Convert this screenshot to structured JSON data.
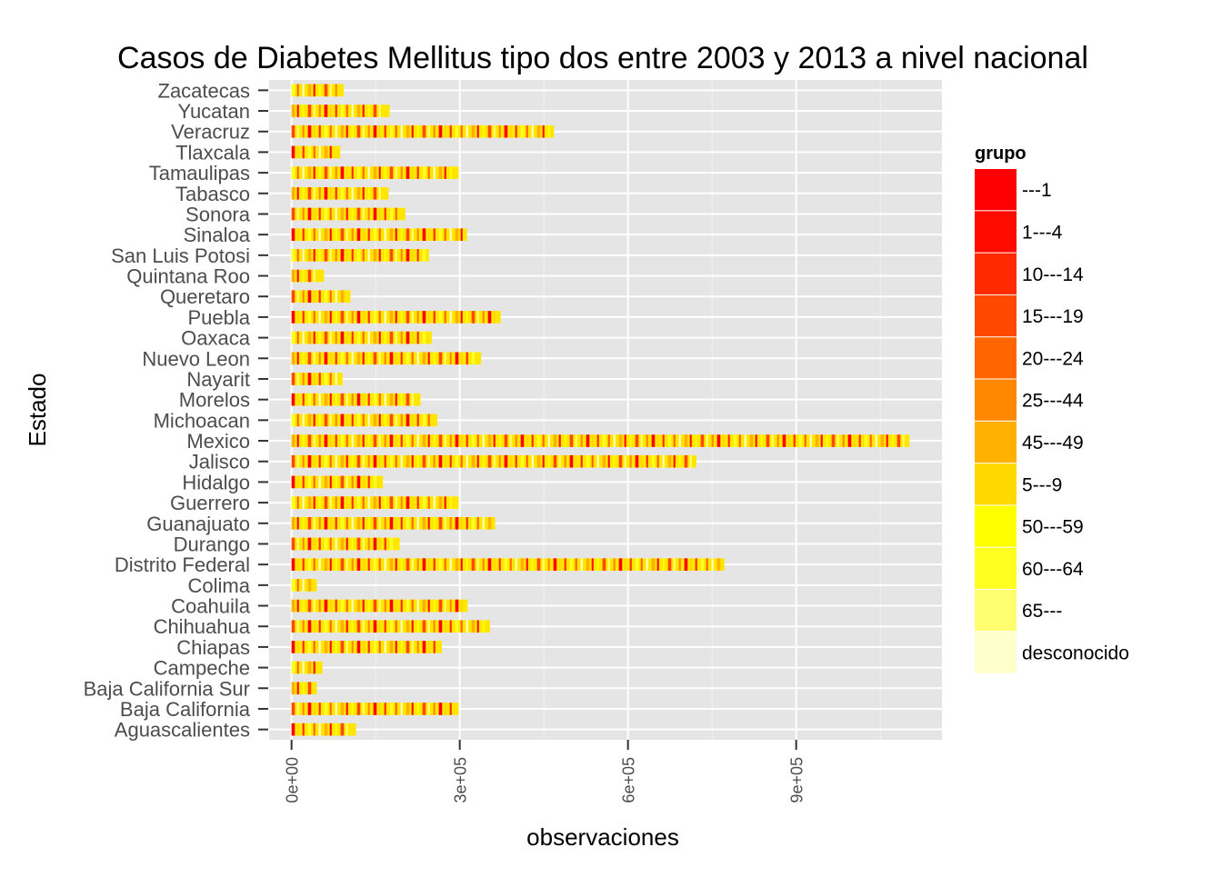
{
  "chart_data": {
    "type": "bar",
    "stacked": true,
    "orientation": "horizontal",
    "title": "Casos de Diabetes Mellitus tipo dos entre 2003 y 2013 a nivel nacional",
    "xlabel": "observaciones",
    "ylabel": "Estado",
    "xlim": [
      -40000,
      1160000
    ],
    "xticks": [
      0,
      300000,
      600000,
      900000
    ],
    "xtick_labels": [
      "0e+00",
      "3e+05",
      "6e+05",
      "9e+05"
    ],
    "grid": true,
    "legend_position": "right",
    "categories": [
      "Aguascalientes",
      "Baja California",
      "Baja California Sur",
      "Campeche",
      "Chiapas",
      "Chihuahua",
      "Coahuila",
      "Colima",
      "Distrito Federal",
      "Durango",
      "Guanajuato",
      "Guerrero",
      "Hidalgo",
      "Jalisco",
      "Mexico",
      "Michoacan",
      "Morelos",
      "Nayarit",
      "Nuevo Leon",
      "Oaxaca",
      "Puebla",
      "Queretaro",
      "Quintana Roo",
      "San Luis Potosi",
      "Sinaloa",
      "Sonora",
      "Tabasco",
      "Tamaulipas",
      "Tlaxcala",
      "Veracruz",
      "Yucatan",
      "Zacatecas"
    ],
    "totals": [
      115000,
      298000,
      45000,
      55000,
      268000,
      354000,
      314000,
      45000,
      772000,
      193000,
      363000,
      298000,
      163000,
      722000,
      1102000,
      260000,
      230000,
      91000,
      338000,
      250000,
      373000,
      105000,
      58000,
      245000,
      313000,
      203000,
      173000,
      298000,
      87000,
      468000,
      175000,
      93000
    ],
    "legend": {
      "title": "grupo",
      "entries": [
        {
          "name": "---1",
          "color": "#FF0000"
        },
        {
          "name": "1---4",
          "color": "#FF0B00"
        },
        {
          "name": "10---14",
          "color": "#FF2A00"
        },
        {
          "name": "15---19",
          "color": "#FF4800"
        },
        {
          "name": "20---24",
          "color": "#FF6600"
        },
        {
          "name": "25---44",
          "color": "#FF8800"
        },
        {
          "name": "45---49",
          "color": "#FFB000"
        },
        {
          "name": "5---9",
          "color": "#FFD800"
        },
        {
          "name": "50---59",
          "color": "#FFFF00"
        },
        {
          "name": "60---64",
          "color": "#FFFF20"
        },
        {
          "name": "65---",
          "color": "#FFFF70"
        },
        {
          "name": "desconocido",
          "color": "#FFFFCC"
        }
      ]
    },
    "colors": {
      "panel": "#E5E5E5",
      "grid_major": "#FFFFFF",
      "grid_minor": "#F2F2F2",
      "axis_text": "#4D4D4D"
    }
  }
}
